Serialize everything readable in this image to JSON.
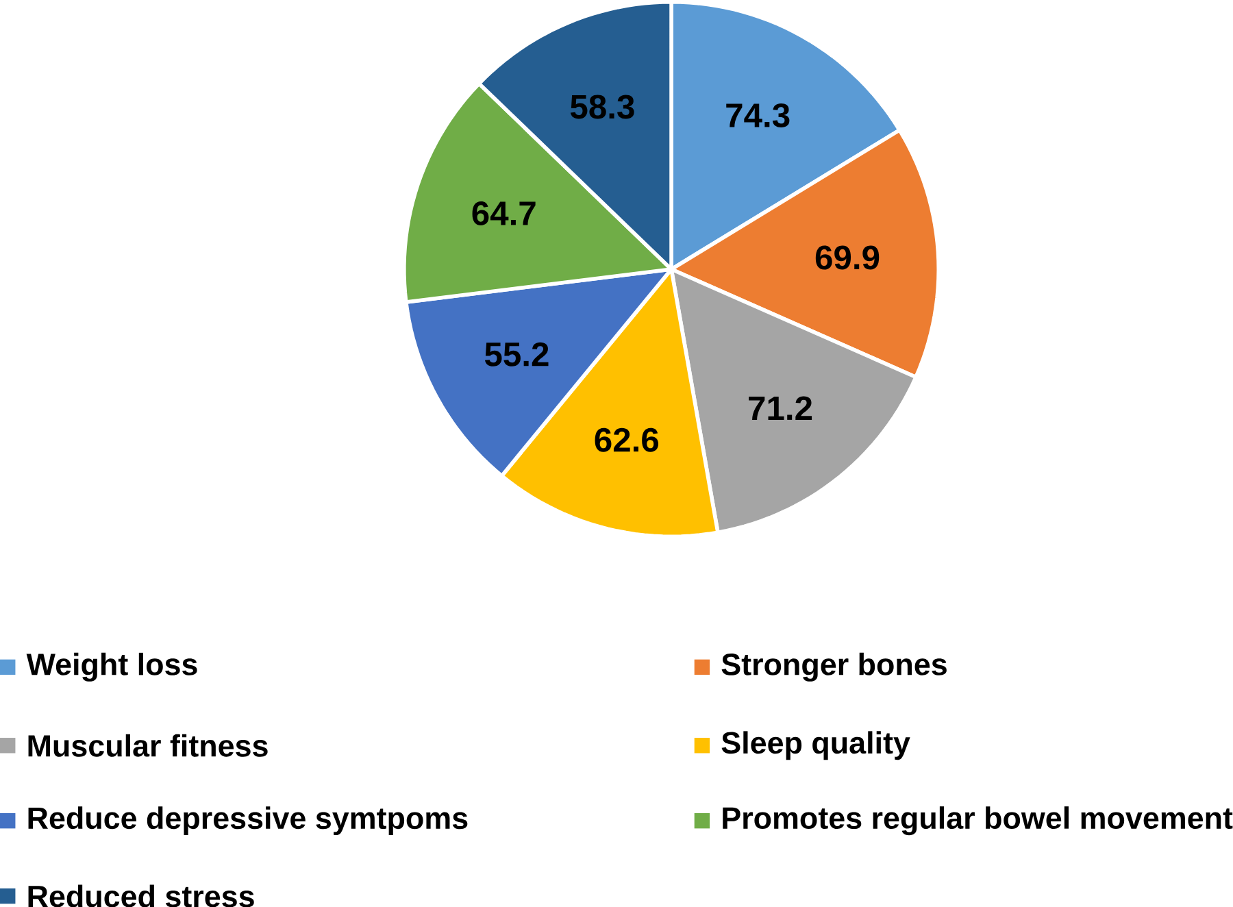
{
  "chart_data": {
    "type": "pie",
    "categories": [
      "Weight loss",
      "Stronger bones",
      "Muscular fitness",
      "Sleep quality",
      "Reduce depressive symtpoms",
      "Promotes regular bowel movement",
      "Reduced stress"
    ],
    "values": [
      74.3,
      69.9,
      71.2,
      62.6,
      55.2,
      64.7,
      58.3
    ],
    "colors": [
      "#5b9bd5",
      "#ed7d31",
      "#a5a5a5",
      "#ffc000",
      "#4472c4",
      "#70ad47",
      "#255e91"
    ],
    "data_labels": true,
    "legend": "bottom"
  }
}
